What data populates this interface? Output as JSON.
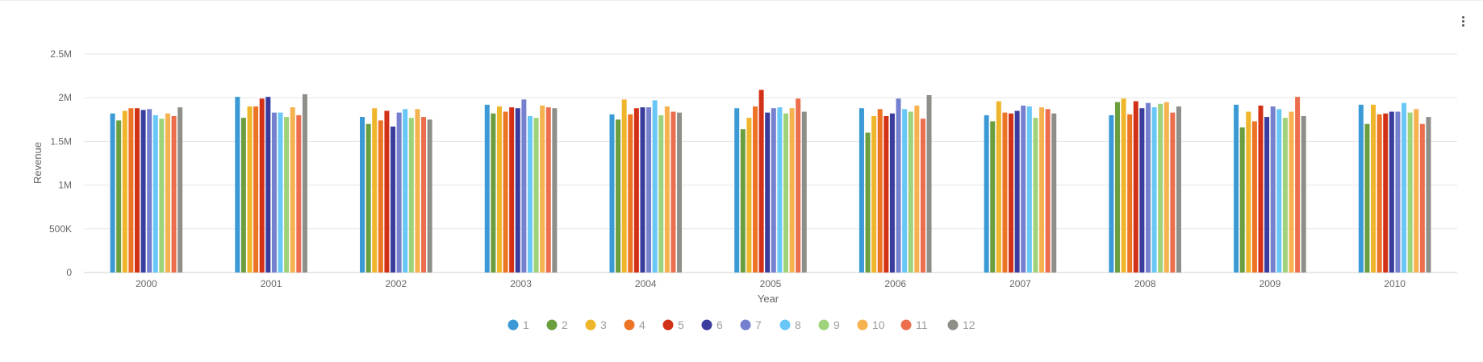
{
  "menu": {
    "icon": "more-vert-icon"
  },
  "chart_data": {
    "type": "bar",
    "title": "",
    "xlabel": "Year",
    "ylabel": "Revenue",
    "ylim": [
      0,
      2500000
    ],
    "yticks": [
      0,
      500000,
      1000000,
      1500000,
      2000000,
      2500000
    ],
    "ytick_labels": [
      "0",
      "500K",
      "1M",
      "1.5M",
      "2M",
      "2.5M"
    ],
    "grid": true,
    "legend_position": "bottom-center",
    "categories": [
      "2000",
      "2001",
      "2002",
      "2003",
      "2004",
      "2005",
      "2006",
      "2007",
      "2008",
      "2009",
      "2010"
    ],
    "series": [
      {
        "name": "1",
        "color": "#3b9ad6",
        "values": [
          1820000,
          2010000,
          1780000,
          1920000,
          1810000,
          1880000,
          1880000,
          1800000,
          1800000,
          1920000,
          1920000
        ]
      },
      {
        "name": "2",
        "color": "#6a9e3f",
        "values": [
          1740000,
          1770000,
          1700000,
          1820000,
          1750000,
          1640000,
          1600000,
          1730000,
          1950000,
          1660000,
          1700000
        ]
      },
      {
        "name": "3",
        "color": "#f0b62b",
        "values": [
          1850000,
          1900000,
          1880000,
          1900000,
          1980000,
          1770000,
          1790000,
          1960000,
          1990000,
          1840000,
          1920000
        ]
      },
      {
        "name": "4",
        "color": "#ee7425",
        "values": [
          1880000,
          1900000,
          1740000,
          1840000,
          1810000,
          1900000,
          1870000,
          1830000,
          1810000,
          1730000,
          1810000
        ]
      },
      {
        "name": "5",
        "color": "#d33115",
        "values": [
          1880000,
          1990000,
          1850000,
          1890000,
          1880000,
          2090000,
          1790000,
          1820000,
          1960000,
          1910000,
          1820000
        ]
      },
      {
        "name": "6",
        "color": "#3a3d9d",
        "values": [
          1860000,
          2010000,
          1670000,
          1880000,
          1890000,
          1830000,
          1820000,
          1850000,
          1880000,
          1780000,
          1840000
        ]
      },
      {
        "name": "7",
        "color": "#7580cf",
        "values": [
          1870000,
          1830000,
          1830000,
          1980000,
          1890000,
          1880000,
          1990000,
          1910000,
          1940000,
          1900000,
          1840000
        ]
      },
      {
        "name": "8",
        "color": "#69c7f7",
        "values": [
          1800000,
          1830000,
          1870000,
          1790000,
          1970000,
          1890000,
          1870000,
          1900000,
          1890000,
          1870000,
          1940000
        ]
      },
      {
        "name": "9",
        "color": "#9fd37b",
        "values": [
          1760000,
          1780000,
          1770000,
          1770000,
          1800000,
          1820000,
          1840000,
          1770000,
          1930000,
          1770000,
          1830000
        ]
      },
      {
        "name": "10",
        "color": "#f6b24f",
        "values": [
          1820000,
          1890000,
          1870000,
          1910000,
          1900000,
          1880000,
          1910000,
          1890000,
          1950000,
          1840000,
          1870000
        ]
      },
      {
        "name": "11",
        "color": "#ec6e4d",
        "values": [
          1790000,
          1800000,
          1780000,
          1890000,
          1840000,
          1990000,
          1760000,
          1870000,
          1830000,
          2010000,
          1700000
        ]
      },
      {
        "name": "12",
        "color": "#8f8f8a",
        "values": [
          1890000,
          2040000,
          1750000,
          1880000,
          1830000,
          1840000,
          2030000,
          1820000,
          1900000,
          1790000,
          1780000
        ]
      }
    ]
  }
}
